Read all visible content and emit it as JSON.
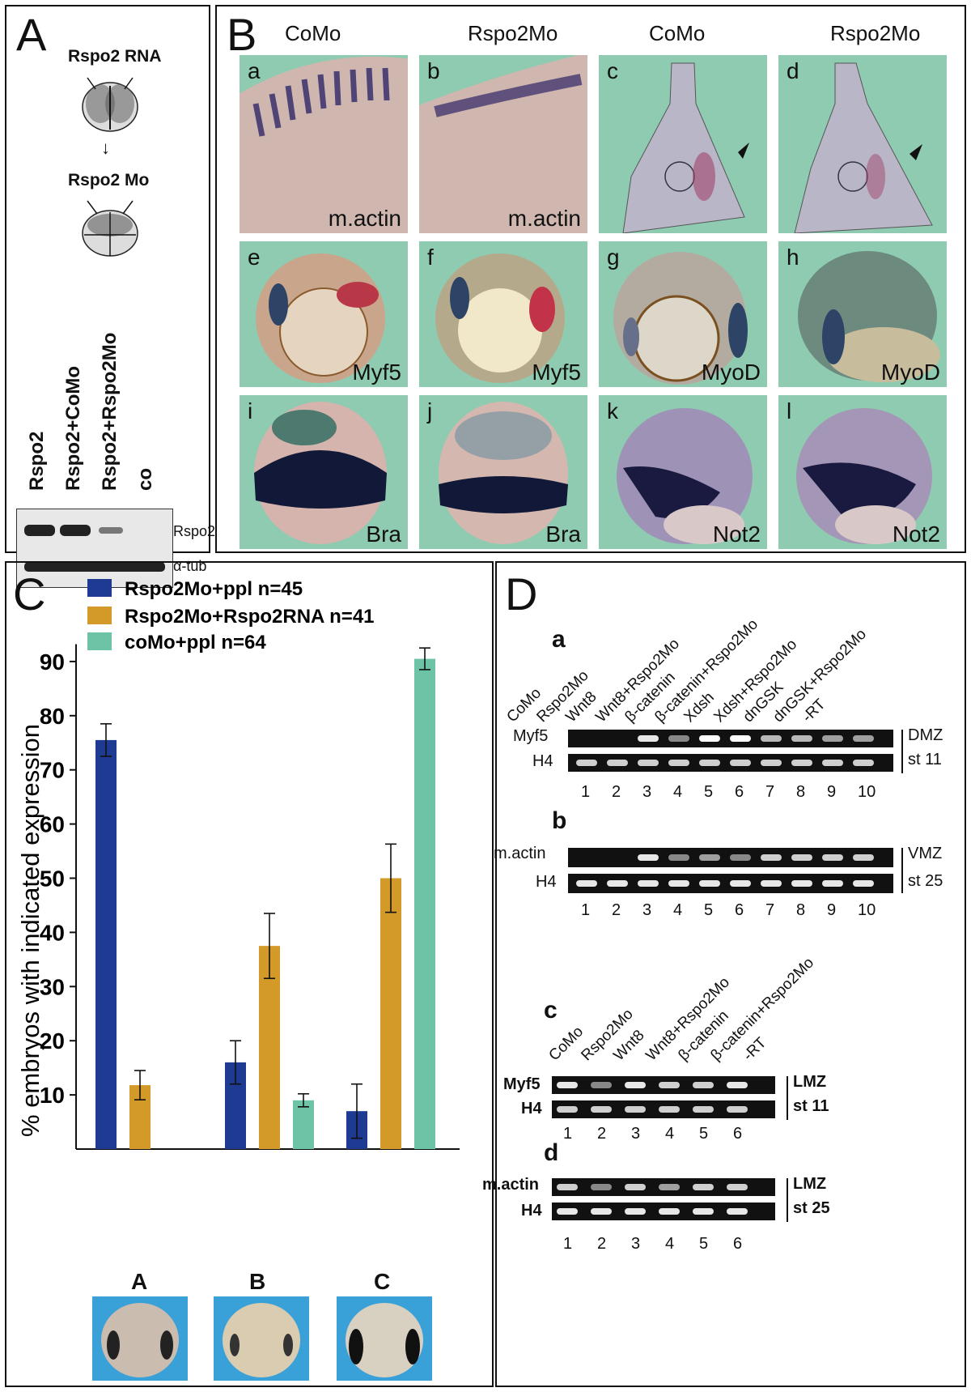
{
  "panelA": {
    "letter": "A",
    "rna_label": "Rspo2 RNA",
    "mo_label": "Rspo2 Mo",
    "lanes": [
      "Rspo2",
      "Rspo2+CoMo",
      "Rspo2+Rspo2Mo",
      "co"
    ],
    "blot_labels": [
      "Rspo2",
      "α-tub"
    ]
  },
  "panelB": {
    "letter": "B",
    "columns": [
      "CoMo",
      "Rspo2Mo",
      "CoMo",
      "Rspo2Mo"
    ],
    "tiles": [
      {
        "letter": "a",
        "marker": "m.actin"
      },
      {
        "letter": "b",
        "marker": "m.actin"
      },
      {
        "letter": "c",
        "marker": ""
      },
      {
        "letter": "d",
        "marker": ""
      },
      {
        "letter": "e",
        "marker": "Myf5"
      },
      {
        "letter": "f",
        "marker": "Myf5"
      },
      {
        "letter": "g",
        "marker": "MyoD"
      },
      {
        "letter": "h",
        "marker": "MyoD"
      },
      {
        "letter": "i",
        "marker": "Bra"
      },
      {
        "letter": "j",
        "marker": "Bra"
      },
      {
        "letter": "k",
        "marker": "Not2"
      },
      {
        "letter": "l",
        "marker": "Not2"
      }
    ]
  },
  "panelC": {
    "letter": "C",
    "embryo_labels": [
      "A",
      "B",
      "C"
    ]
  },
  "chart_data": {
    "type": "bar",
    "categories": [
      "A",
      "B",
      "C"
    ],
    "ylabel": "% embryos with indicated expression",
    "ylim": [
      0,
      92
    ],
    "yticks": [
      10,
      20,
      30,
      40,
      50,
      60,
      70,
      80,
      90
    ],
    "legend_position": "top",
    "series": [
      {
        "name": "Rspo2Mo+ppl n=45",
        "color": "#1f3a93",
        "values": [
          75.5,
          16,
          7
        ],
        "errors": [
          3,
          4,
          5
        ]
      },
      {
        "name": "Rspo2Mo+Rspo2RNA n=41",
        "color": "#d39a2a",
        "values": [
          11.8,
          37.5,
          50
        ],
        "errors": [
          2.7,
          6,
          6.3
        ]
      },
      {
        "name": "coMo+ppl   n=64",
        "color": "#6cc3a6",
        "values": [
          null,
          9,
          90.5
        ],
        "errors": [
          null,
          1.2,
          2
        ]
      }
    ]
  },
  "panelD": {
    "letter": "D",
    "a": {
      "letter": "a",
      "lanes": [
        "CoMo",
        "Rspo2Mo",
        "Wnt8",
        "Wnt8+Rspo2Mo",
        "β-catenin",
        "β-catenin+Rspo2Mo",
        "Xdsh",
        "Xdsh+Rspo2Mo",
        "dnGSK",
        "dnGSK+Rspo2Mo",
        "-RT"
      ],
      "rows": [
        "Myf5",
        "H4"
      ],
      "numbers": [
        "1",
        "2",
        "3",
        "4",
        "5",
        "6",
        "7",
        "8",
        "9",
        "10"
      ],
      "side": [
        "DMZ",
        "st 11"
      ]
    },
    "b": {
      "letter": "b",
      "rows": [
        "m.actin",
        "H4"
      ],
      "numbers": [
        "1",
        "2",
        "3",
        "4",
        "5",
        "6",
        "7",
        "8",
        "9",
        "10"
      ],
      "side": [
        "VMZ",
        "st 25"
      ]
    },
    "c": {
      "letter": "c",
      "lanes": [
        "CoMo",
        "Rspo2Mo",
        "Wnt8",
        "Wnt8+Rspo2Mo",
        "β-catenin",
        "β-catenin+Rspo2Mo",
        "-RT"
      ],
      "rows": [
        "Myf5",
        "H4"
      ],
      "numbers": [
        "1",
        "2",
        "3",
        "4",
        "5",
        "6"
      ],
      "side": [
        "LMZ",
        "st 11"
      ]
    },
    "d": {
      "letter": "d",
      "rows": [
        "m.actin",
        "H4"
      ],
      "numbers": [
        "1",
        "2",
        "3",
        "4",
        "5",
        "6"
      ],
      "side": [
        "LMZ",
        "st 25"
      ]
    }
  }
}
